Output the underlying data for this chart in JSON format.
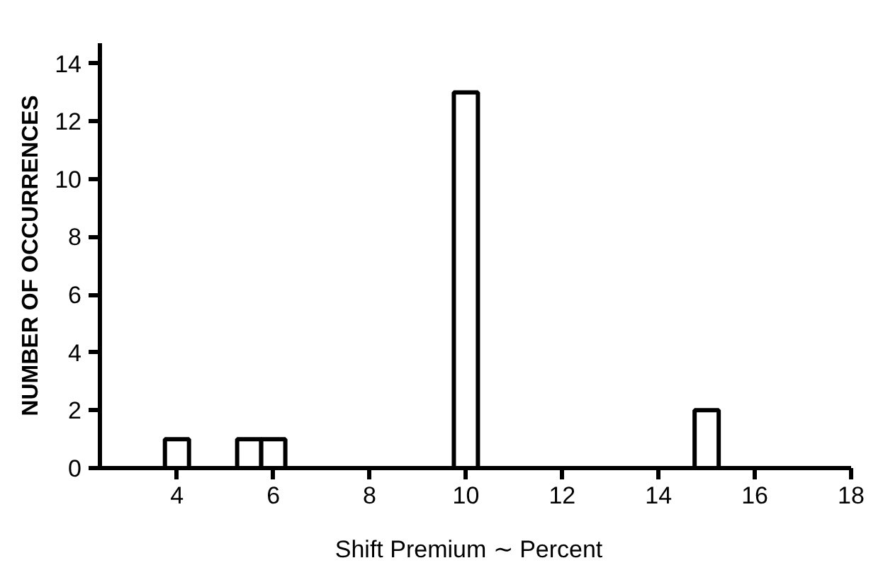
{
  "chart_data": {
    "type": "bar",
    "x": [
      4,
      5.5,
      6,
      10,
      15
    ],
    "values": [
      1,
      1,
      1,
      13,
      2
    ],
    "color": "#ffffff",
    "xlabel": "Shift Premium  ∼  Percent",
    "ylabel": "NUMBER OF OCCURRENCES",
    "xlim": [
      2.4,
      18
    ],
    "ylim": [
      0,
      14.7
    ],
    "xticks": [
      4,
      6,
      8,
      10,
      12,
      14,
      16,
      18
    ],
    "yticks": [
      0,
      2,
      4,
      6,
      8,
      10,
      12,
      14
    ],
    "grid": false
  }
}
